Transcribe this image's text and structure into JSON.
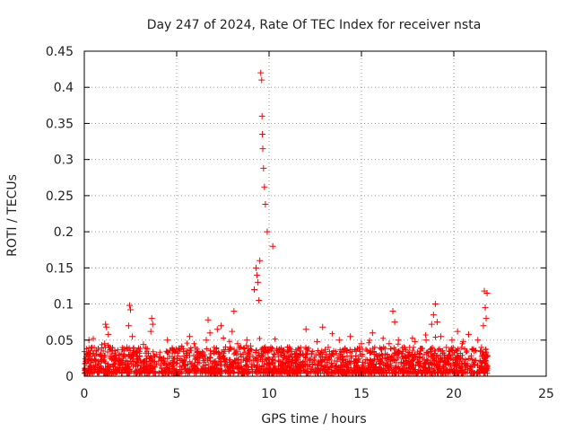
{
  "chart_data": {
    "type": "scatter",
    "title": "Day 247 of 2024, Rate Of TEC Index for receiver nsta",
    "xlabel": "GPS time / hours",
    "ylabel": "ROTI / TECUs",
    "xlim": [
      0,
      25
    ],
    "ylim": [
      0,
      0.45
    ],
    "x_ticks": [
      0,
      5,
      10,
      15,
      20,
      25
    ],
    "x_tick_labels": [
      "0",
      "5",
      "10",
      "15",
      "20",
      "25"
    ],
    "y_ticks": [
      0,
      0.05,
      0.1,
      0.15,
      0.2,
      0.25,
      0.3,
      0.35,
      0.4,
      0.45
    ],
    "y_tick_labels": [
      "0",
      "0.05",
      "0.1",
      "0.15",
      "0.2",
      "0.25",
      "0.3",
      "0.35",
      "0.4",
      "0.45"
    ],
    "grid": true,
    "marker": "plus",
    "marker_color": "#ff0000",
    "series": [
      {
        "name": "ROTI",
        "x": [
          0.1,
          0.2,
          0.25,
          0.4,
          0.6,
          0.9,
          1.1,
          1.15,
          1.2,
          1.3,
          1.4,
          1.5,
          1.7,
          1.9,
          2.1,
          2.3,
          2.4,
          2.45,
          2.5,
          2.6,
          2.8,
          3.0,
          3.2,
          3.4,
          3.6,
          3.65,
          3.7,
          3.9,
          4.2,
          4.5,
          4.8,
          5.1,
          5.4,
          5.7,
          6.0,
          6.3,
          6.6,
          6.7,
          6.8,
          7.0,
          7.2,
          7.4,
          7.6,
          7.9,
          8.0,
          8.1,
          8.3,
          8.6,
          8.8,
          9.0,
          9.2,
          9.3,
          9.35,
          9.4,
          9.45,
          9.5,
          9.55,
          9.6,
          9.62,
          9.64,
          9.66,
          9.7,
          9.75,
          9.8,
          9.9,
          10.2,
          10.5,
          10.8,
          11.1,
          11.4,
          11.7,
          12.0,
          12.3,
          12.6,
          12.9,
          13.2,
          13.5,
          13.8,
          14.1,
          14.4,
          14.7,
          15.0,
          15.3,
          15.6,
          15.9,
          16.2,
          16.5,
          16.7,
          16.8,
          17.0,
          17.3,
          17.6,
          17.9,
          18.2,
          18.5,
          18.8,
          18.9,
          19.0,
          19.1,
          19.3,
          19.6,
          19.9,
          20.2,
          20.5,
          20.8,
          21.1,
          21.3,
          21.5,
          21.6,
          21.65,
          21.7,
          21.75,
          21.8
        ],
        "y": [
          0.018,
          0.032,
          0.05,
          0.024,
          0.015,
          0.028,
          0.045,
          0.072,
          0.068,
          0.058,
          0.04,
          0.035,
          0.022,
          0.03,
          0.025,
          0.04,
          0.07,
          0.098,
          0.092,
          0.055,
          0.033,
          0.028,
          0.044,
          0.038,
          0.062,
          0.08,
          0.072,
          0.03,
          0.022,
          0.05,
          0.018,
          0.035,
          0.028,
          0.055,
          0.04,
          0.03,
          0.05,
          0.078,
          0.06,
          0.034,
          0.065,
          0.07,
          0.025,
          0.04,
          0.062,
          0.09,
          0.045,
          0.03,
          0.05,
          0.042,
          0.12,
          0.15,
          0.14,
          0.13,
          0.105,
          0.16,
          0.42,
          0.41,
          0.36,
          0.335,
          0.315,
          0.288,
          0.262,
          0.238,
          0.2,
          0.18,
          0.035,
          0.028,
          0.04,
          0.022,
          0.035,
          0.065,
          0.03,
          0.048,
          0.068,
          0.04,
          0.03,
          0.05,
          0.038,
          0.055,
          0.028,
          0.045,
          0.035,
          0.06,
          0.028,
          0.04,
          0.045,
          0.09,
          0.075,
          0.05,
          0.04,
          0.03,
          0.048,
          0.035,
          0.05,
          0.072,
          0.085,
          0.1,
          0.075,
          0.055,
          0.04,
          0.05,
          0.062,
          0.048,
          0.058,
          0.035,
          0.05,
          0.04,
          0.07,
          0.118,
          0.095,
          0.08,
          0.115
        ]
      }
    ]
  }
}
